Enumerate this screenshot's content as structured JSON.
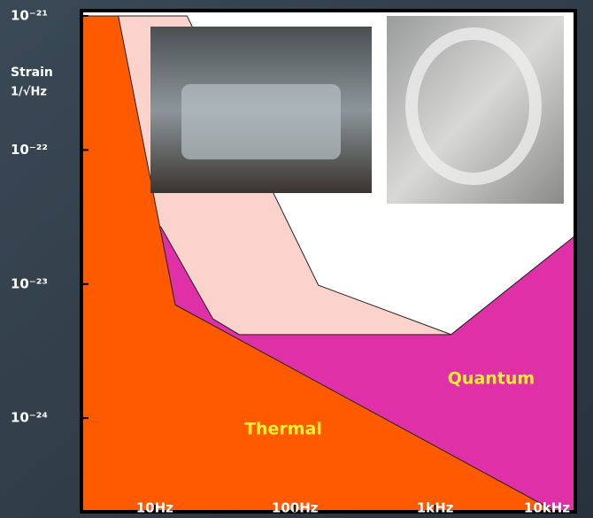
{
  "chart_data": {
    "type": "area",
    "ylabel": [
      "Strain",
      "1/√Hz"
    ],
    "xscale": "log",
    "yscale": "log",
    "xlim": [
      3,
      10000
    ],
    "ylim": [
      2e-25,
      1e-21
    ],
    "xticks": [
      {
        "value": 10,
        "label": "10Hz"
      },
      {
        "value": 100,
        "label": "100Hz"
      },
      {
        "value": 1000,
        "label": "1kHz"
      },
      {
        "value": 10000,
        "label": "10kHz"
      }
    ],
    "yticks": [
      {
        "value": 1e-21,
        "label": "10⁻²¹"
      },
      {
        "value": 1e-22,
        "label": "10⁻²²"
      },
      {
        "value": 1e-23,
        "label": "10⁻²³"
      },
      {
        "value": 1e-24,
        "label": "10⁻²⁴"
      }
    ],
    "series": [
      {
        "color": "#fcd3cc",
        "x": [
          5.5,
          17,
          147,
          1300
        ],
        "values": [
          1e-21,
          1e-21,
          9.8e-24,
          4.2e-24
        ]
      },
      {
        "name": "Quantum",
        "color": "#e030a8",
        "x": [
          11,
          26,
          40,
          1300,
          10000
        ],
        "values": [
          2.7e-23,
          5.5e-24,
          4.2e-24,
          4.2e-24,
          2.3e-23
        ]
      },
      {
        "name": "Thermal",
        "color": "#ff5a00",
        "x": [
          3,
          5.5,
          14,
          7300
        ],
        "values": [
          1e-21,
          1e-21,
          7e-24,
          2e-25
        ]
      }
    ]
  }
}
